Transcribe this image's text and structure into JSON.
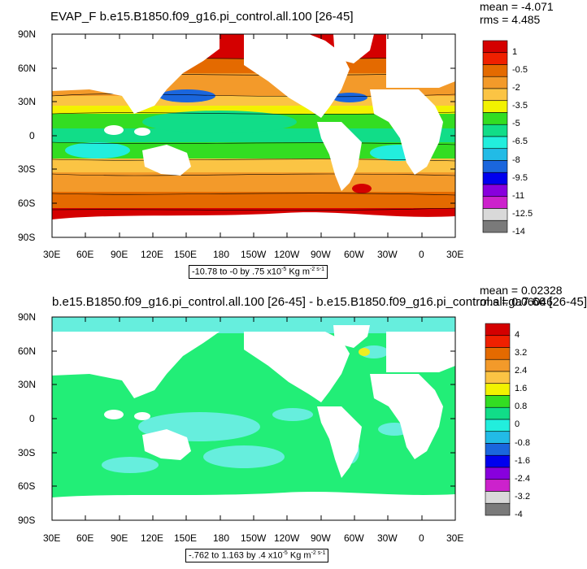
{
  "panels": [
    {
      "title": "EVAP_F b.e15.B1850.f09_g16.pi_control.all.100 [26-45]",
      "mean_label": "mean = -4.071",
      "rms_label": "rms = 4.485",
      "lat_ticks": [
        "90N",
        "60N",
        "30N",
        "0",
        "30S",
        "60S",
        "90S"
      ],
      "lon_ticks": [
        "30E",
        "60E",
        "90E",
        "120E",
        "150E",
        "180",
        "150W",
        "120W",
        "90W",
        "60W",
        "30W",
        "0",
        "30E"
      ],
      "caption_text": "-10.78 to -0 by .75 x10",
      "caption_exp": "-5",
      "caption_unit": "Kg m",
      "caption_unit_exp": "-2 s-1",
      "colorbar_labels": [
        "1",
        "-0.5",
        "-2",
        "-3.5",
        "-5",
        "-6.5",
        "-8",
        "-9.5",
        "-11",
        "-12.5",
        "-14"
      ],
      "colorbar_colors": [
        "#d40000",
        "#ef2000",
        "#e46a00",
        "#f39a2a",
        "#fbc444",
        "#f2f200",
        "#33dd22",
        "#11dd88",
        "#22eedd",
        "#22bbe6",
        "#1a66dd",
        "#0000ee",
        "#8800dd",
        "#cc22cc",
        "#d9d9d9",
        "#7a7a7a"
      ]
    },
    {
      "title": "b.e15.B1850.f09_g16.pi_control.all.100 [26-45] - b.e15.B1850.f09_g16.pi_control.all.ga7.66 [26-45]",
      "mean_label": "mean = 0.02328",
      "rms_label": "rms = 0.06046",
      "lat_ticks": [
        "90N",
        "60N",
        "30N",
        "0",
        "30S",
        "60S",
        "90S"
      ],
      "lon_ticks": [
        "30E",
        "60E",
        "90E",
        "120E",
        "150E",
        "180",
        "150W",
        "120W",
        "90W",
        "60W",
        "30W",
        "0",
        "30E"
      ],
      "caption_text": "-.762 to 1.163 by .4 x10",
      "caption_exp": "-5",
      "caption_unit": "Kg m",
      "caption_unit_exp": "-2 s-1",
      "colorbar_labels": [
        "4",
        "3.2",
        "2.4",
        "1.6",
        "0.8",
        "0",
        "-0.8",
        "-1.6",
        "-2.4",
        "-3.2",
        "-4"
      ],
      "colorbar_colors": [
        "#d40000",
        "#ef2000",
        "#e46a00",
        "#f39a2a",
        "#fbc444",
        "#f2f200",
        "#33dd22",
        "#11dd88",
        "#22eedd",
        "#22bbe6",
        "#1a66dd",
        "#0000ee",
        "#8800dd",
        "#cc22cc",
        "#d9d9d9",
        "#7a7a7a"
      ]
    }
  ],
  "colors": {
    "land": "#ffffff",
    "diff_ocean_main": "#22ee77",
    "diff_ocean_cool": "#66eedd",
    "diff_warm": "#eeee22"
  }
}
